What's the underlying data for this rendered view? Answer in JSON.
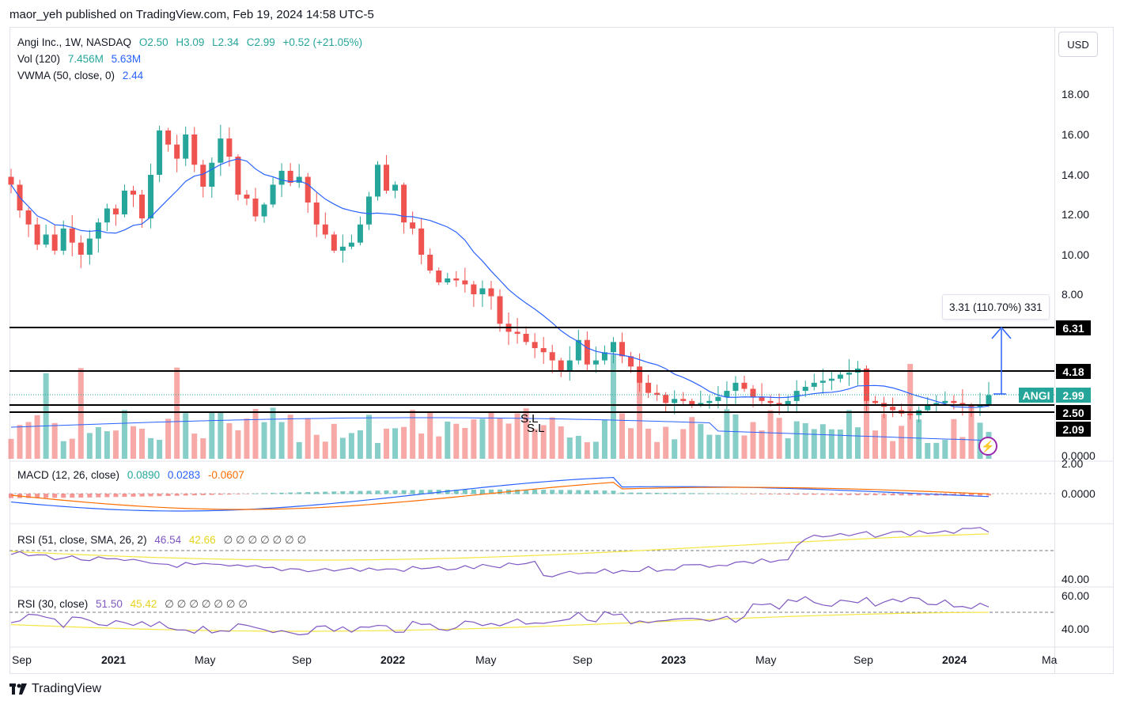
{
  "publisher_line": "maor_yeh published on TradingView.com, Feb 19, 2024 14:58 UTC-5",
  "currency_button": "USD",
  "legend": {
    "symbol": "Angi Inc., 1W, NASDAQ",
    "o": "O2.50",
    "h": "H3.09",
    "l": "L2.34",
    "c": "C2.99",
    "chg": "+0.52 (+21.05%)",
    "vol_label": "Vol (120)",
    "vol_v1": "7.456M",
    "vol_v2": "5.63M",
    "vwma_label": "VWMA (50, close, 0)",
    "vwma_v": "2.44",
    "macd_label": "MACD (12, 26, close)",
    "macd_v1": "0.0890",
    "macd_v2": "0.0283",
    "macd_v3": "-0.0607",
    "rsi1_label": "RSI (51, close, SMA, 26, 2)",
    "rsi1_v1": "46.54",
    "rsi1_v2": "42.66",
    "rsi1_zeros": "∅ ∅ ∅ ∅ ∅ ∅ ∅",
    "rsi2_label": "RSI (30, close)",
    "rsi2_v1": "51.50",
    "rsi2_v2": "45.42",
    "rsi2_zeros": "∅ ∅ ∅ ∅ ∅ ∅ ∅"
  },
  "price_ticks": [
    "18.00",
    "16.00",
    "14.00",
    "12.00",
    "10.00",
    "8.00",
    "0.0000"
  ],
  "macd_ticks": [
    "2.00",
    "0.0000"
  ],
  "rsi1_ticks": [
    "40.00"
  ],
  "rsi2_ticks": [
    "60.00",
    "40.00"
  ],
  "time_ticks": [
    "Sep",
    "2021",
    "May",
    "Sep",
    "2022",
    "May",
    "Sep",
    "2023",
    "May",
    "Sep",
    "2024",
    "Ma"
  ],
  "time_ticks_bold": [
    false,
    true,
    false,
    false,
    true,
    false,
    false,
    true,
    false,
    false,
    true,
    false
  ],
  "tags": {
    "t631": "6.31",
    "t418": "4.18",
    "ticker": "ANGI",
    "price": "2.99",
    "t250": "2.50",
    "t209": "2.09"
  },
  "measure_text": "3.31 (110.70%) 331",
  "sl_label_1": "S.L",
  "sl_label_2": "S.L",
  "footer_brand": "TradingView",
  "colors": {
    "up": "#26a69a",
    "down": "#ef5350",
    "vwma": "#2962ff",
    "macd": "#2962ff",
    "signal": "#ff6d00",
    "rsi": "#7e57c2",
    "rsi_ma": "#f5e642"
  },
  "chart_data": {
    "type": "candlestick",
    "title": "Angi Inc., 1W, NASDAQ",
    "ylim": [
      0,
      19
    ],
    "horizontal_levels": [
      6.31,
      4.18,
      2.5,
      2.09
    ],
    "close_series": [
      13.5,
      12.2,
      11.5,
      10.5,
      11.0,
      10.2,
      11.3,
      10.6,
      10.0,
      10.8,
      11.6,
      12.3,
      12.0,
      13.2,
      13.0,
      11.8,
      14.0,
      16.2,
      15.5,
      14.8,
      16.0,
      14.5,
      13.4,
      14.6,
      15.8,
      14.9,
      13.0,
      12.8,
      11.9,
      12.5,
      13.5,
      14.2,
      13.6,
      13.9,
      12.6,
      11.5,
      11.0,
      10.2,
      10.4,
      10.6,
      11.5,
      12.9,
      14.5,
      13.2,
      13.5,
      11.6,
      11.3,
      10.0,
      9.2,
      8.6,
      8.8,
      8.7,
      8.5,
      8.0,
      8.3,
      7.9,
      6.5,
      6.1,
      6.0,
      5.6,
      5.3,
      5.1,
      4.7,
      4.2,
      4.7,
      5.7,
      4.5,
      4.7,
      5.1,
      5.6,
      4.9,
      4.4,
      3.6,
      3.1,
      3.0,
      2.6,
      2.8,
      2.7,
      2.5,
      2.6,
      2.7,
      2.9,
      3.2,
      3.6,
      3.3,
      2.9,
      2.7,
      2.6,
      2.5,
      2.7,
      3.2,
      3.4,
      3.6,
      3.7,
      3.8,
      4.0,
      4.1,
      4.3,
      2.7,
      2.6,
      2.4,
      2.2,
      2.0,
      1.9,
      2.2,
      2.5,
      2.6,
      2.7,
      2.6,
      2.5,
      2.4,
      2.5,
      2.99
    ],
    "volume_label": "Vol (120)",
    "vwma_label": "VWMA (50, close, 0)"
  }
}
